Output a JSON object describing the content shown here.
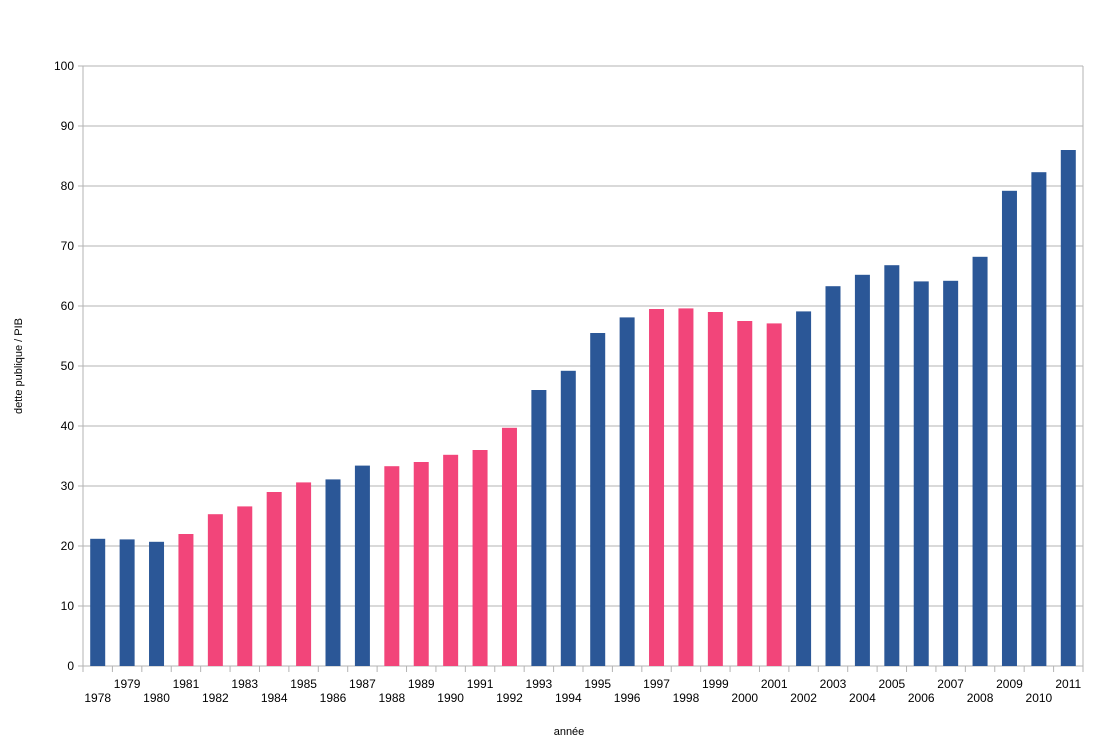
{
  "chart_data": {
    "type": "bar",
    "title": "",
    "xlabel": "année",
    "ylabel": "dette publique / PIB",
    "ylim": [
      0,
      100
    ],
    "yticks": [
      0,
      10,
      20,
      30,
      40,
      50,
      60,
      70,
      80,
      90,
      100
    ],
    "grid": true,
    "legend": "none",
    "colors": {
      "blue": "#2b5797",
      "pink": "#f2457a"
    },
    "categories": [
      "1978",
      "1979",
      "1980",
      "1981",
      "1982",
      "1983",
      "1984",
      "1985",
      "1986",
      "1987",
      "1988",
      "1989",
      "1990",
      "1991",
      "1992",
      "1993",
      "1994",
      "1995",
      "1996",
      "1997",
      "1998",
      "1999",
      "2000",
      "2001",
      "2002",
      "2003",
      "2004",
      "2005",
      "2006",
      "2007",
      "2008",
      "2009",
      "2010",
      "2011"
    ],
    "values": [
      21.2,
      21.1,
      20.7,
      22.0,
      25.3,
      26.6,
      29.0,
      30.6,
      31.1,
      33.4,
      33.3,
      34.0,
      35.2,
      36.0,
      39.7,
      46.0,
      49.2,
      55.5,
      58.1,
      59.5,
      59.6,
      59.0,
      57.5,
      57.1,
      59.1,
      63.3,
      65.2,
      66.8,
      64.1,
      64.2,
      68.2,
      79.2,
      82.3,
      86.0
    ],
    "bar_colors": [
      "blue",
      "blue",
      "blue",
      "pink",
      "pink",
      "pink",
      "pink",
      "pink",
      "blue",
      "blue",
      "pink",
      "pink",
      "pink",
      "pink",
      "pink",
      "blue",
      "blue",
      "blue",
      "blue",
      "pink",
      "pink",
      "pink",
      "pink",
      "pink",
      "blue",
      "blue",
      "blue",
      "blue",
      "blue",
      "blue",
      "blue",
      "blue",
      "blue",
      "blue"
    ]
  }
}
